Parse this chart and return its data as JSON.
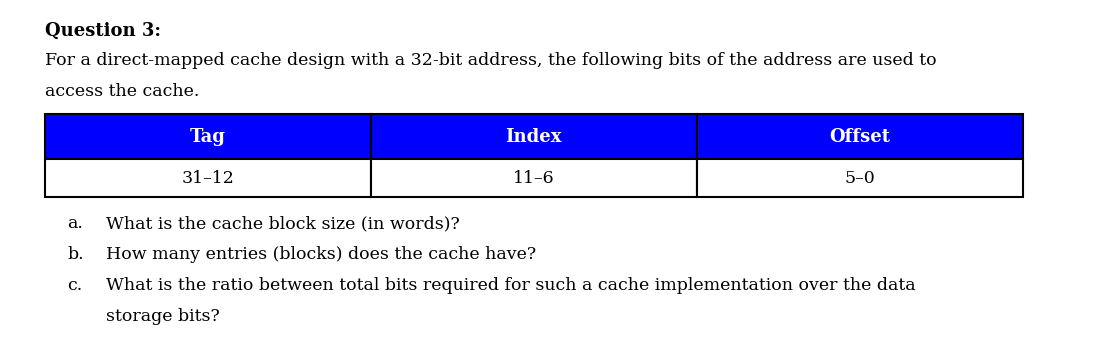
{
  "title": "Question 3:",
  "intro_line1": "For a direct-mapped cache design with a 32-bit address, the following bits of the address are used to",
  "intro_line2": "access the cache.",
  "table_headers": [
    "Tag",
    "Index",
    "Offset"
  ],
  "table_values": [
    "31–12",
    "11–6",
    "5–0"
  ],
  "header_bg_color": "#0000FF",
  "header_text_color": "#FFFFFF",
  "cell_bg_color": "#FFFFFF",
  "cell_text_color": "#000000",
  "table_border_color": "#000000",
  "q_labels": [
    "a.",
    "b.",
    "c.",
    ""
  ],
  "q_texts": [
    "What is the cache block size (in words)?",
    "How many entries (blocks) does the cache have?",
    "What is the ratio between total bits required for such a cache implementation over the data",
    "storage bits?"
  ],
  "background_color": "#FFFFFF",
  "font_size_title": 13,
  "font_size_intro": 12.5,
  "font_size_table_header": 13,
  "font_size_table_value": 12.5,
  "font_size_questions": 12.5
}
